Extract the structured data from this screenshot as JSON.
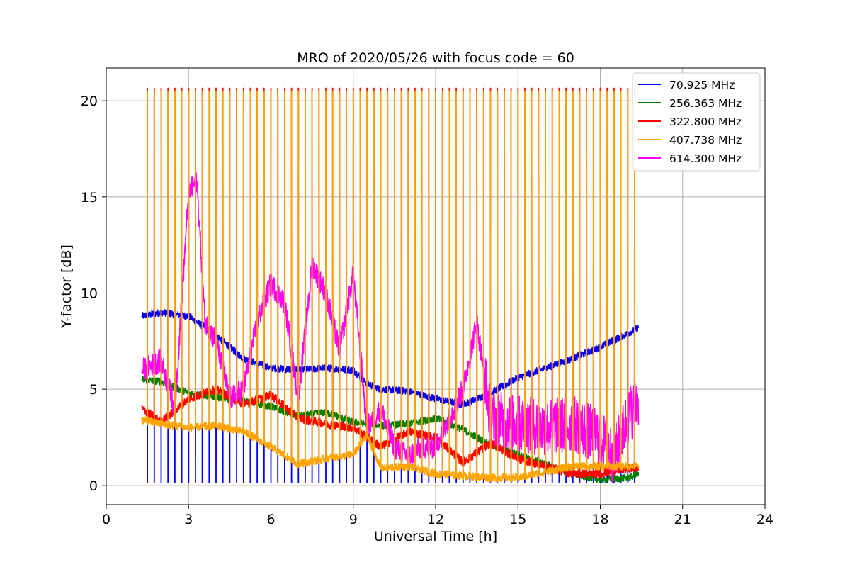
{
  "chart_data": {
    "type": "line",
    "title": "MRO of 2020/05/26 with focus code = 60",
    "xlabel": "Universal Time [h]",
    "ylabel": "Y-factor [dB]",
    "xlim": [
      0,
      24
    ],
    "ylim": [
      -1,
      21.7
    ],
    "xticks": [
      0,
      3,
      6,
      9,
      12,
      15,
      18,
      21,
      24
    ],
    "yticks": [
      0,
      5,
      10,
      15,
      20
    ],
    "grid": true,
    "legend_position": "top-right",
    "data_time_range": [
      1.3,
      19.4
    ],
    "calibration_spikes": {
      "start": 1.5,
      "interval": 0.25,
      "end": 19.35,
      "top_db": 20.5,
      "mid_db": 9.1,
      "low_db": 0.15
    },
    "series": [
      {
        "name": " 70.925 MHz",
        "color": "#0000ff",
        "x": [
          1.3,
          2,
          3,
          4,
          5,
          6,
          7,
          8,
          9,
          9.5,
          10,
          11,
          12,
          13,
          14,
          15,
          16,
          17,
          18,
          19,
          19.4
        ],
        "values": [
          8.8,
          9.0,
          8.8,
          7.8,
          6.6,
          6.1,
          6.0,
          6.1,
          6.0,
          5.3,
          5.0,
          4.9,
          4.5,
          4.2,
          4.8,
          5.6,
          6.1,
          6.6,
          7.2,
          7.9,
          8.2
        ]
      },
      {
        "name": " 256.363 MHz",
        "color": "#008000",
        "x": [
          1.3,
          2,
          3,
          4,
          5,
          6,
          7,
          8,
          9,
          10,
          11,
          12,
          13,
          14,
          15,
          16,
          17,
          18,
          19,
          19.4
        ],
        "values": [
          5.5,
          5.4,
          4.8,
          4.6,
          4.4,
          4.1,
          3.6,
          3.8,
          3.3,
          3.1,
          3.2,
          3.5,
          2.9,
          2.1,
          1.6,
          1.1,
          0.6,
          0.3,
          0.4,
          0.6
        ]
      },
      {
        "name": " 322.800 MHz",
        "color": "#ff0000",
        "x": [
          1.3,
          2,
          3,
          4,
          5,
          6,
          7,
          8,
          9,
          10,
          11,
          12,
          13,
          14,
          15,
          16,
          17,
          18,
          19,
          19.4
        ],
        "values": [
          4.0,
          3.3,
          4.5,
          5.0,
          4.2,
          4.7,
          3.5,
          3.2,
          3.0,
          2.0,
          2.8,
          2.5,
          1.2,
          2.2,
          1.4,
          1.0,
          0.6,
          0.6,
          0.9,
          0.9
        ]
      },
      {
        "name": " 407.738 MHz",
        "color": "#ffa500",
        "x": [
          1.3,
          2,
          3,
          4,
          5,
          6,
          7,
          8,
          9,
          9.5,
          10,
          11,
          12,
          13,
          14,
          15,
          16,
          17,
          18,
          19,
          19.4
        ],
        "values": [
          3.4,
          3.2,
          3.0,
          3.1,
          2.8,
          2.0,
          1.1,
          1.4,
          1.6,
          2.6,
          0.9,
          1.0,
          0.6,
          0.5,
          0.4,
          0.4,
          0.7,
          1.0,
          1.0,
          1.0,
          1.0
        ]
      },
      {
        "name": " 614.300 MHz",
        "color": "#ff00ff",
        "x": [
          1.3,
          2,
          2.5,
          3,
          3.3,
          3.6,
          4,
          4.5,
          5,
          5.5,
          6,
          6.5,
          7,
          7.5,
          8,
          8.5,
          9,
          9.5,
          10,
          10.5,
          11,
          11.5,
          12,
          12.5,
          13,
          13.5,
          14,
          15,
          16,
          17,
          18,
          18.5,
          19,
          19.4
        ],
        "values": [
          6.0,
          6.5,
          4.0,
          15.2,
          15.8,
          8.5,
          7.5,
          4.5,
          5.0,
          8.5,
          10.5,
          9.5,
          4.5,
          11.5,
          10.0,
          7.0,
          11.0,
          3.0,
          4.0,
          2.0,
          1.5,
          2.0,
          2.0,
          3.5,
          5.0,
          8.5,
          3.5,
          3.2,
          3.0,
          3.2,
          2.5,
          1.5,
          3.5,
          4.5
        ]
      }
    ]
  }
}
